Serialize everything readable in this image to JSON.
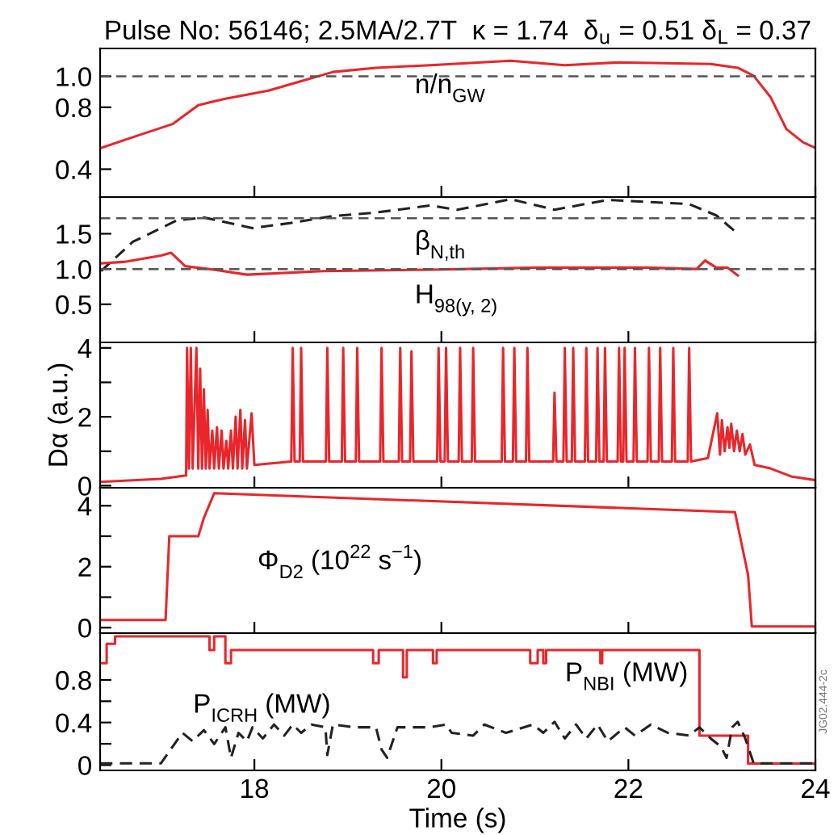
{
  "chart_data": [
    {
      "type": "line",
      "title": "Pulse No: 56146; 2.5MA/2.7T  κ = 1.74  δ$_{u}$ = 0.51 δ$_{L}$ = 0.37",
      "xlim": [
        16.35,
        24
      ],
      "xticks": [
        {
          "value": 18,
          "label": null
        },
        {
          "value": 20,
          "label": null
        },
        {
          "value": 22,
          "label": null
        },
        {
          "value": 24,
          "label": null
        }
      ],
      "ylim": [
        0.22,
        1.18
      ],
      "yticks": [
        0.4,
        0.8,
        {
          "value": 1.0,
          "label": "1.0"
        }
      ],
      "tick_labels": "y",
      "series": [
        {
          "color": "#e8262b",
          "line_style": "solid",
          "x": [
            16.35,
            16.7,
            17.13,
            17.4,
            17.69,
            18.15,
            18.5,
            18.84,
            19.3,
            19.88,
            20.74,
            21.32,
            21.9,
            22.88,
            23.17,
            23.34,
            23.52,
            23.69,
            23.87,
            24.0
          ],
          "values": [
            0.535,
            0.607,
            0.693,
            0.814,
            0.855,
            0.907,
            0.969,
            1.028,
            1.055,
            1.072,
            1.1,
            1.072,
            1.09,
            1.08,
            1.055,
            1.003,
            0.866,
            0.659,
            0.573,
            0.538
          ]
        }
      ],
      "ref_lines": [
        {
          "axis": "y",
          "value": 1.0,
          "color": "#555555",
          "line_style": "dashed"
        }
      ],
      "annotations": [
        "n/n$_{GW}$"
      ]
    },
    {
      "type": "line",
      "xlim": [
        16.35,
        24
      ],
      "xticks": [
        {
          "value": 18,
          "label": null
        },
        {
          "value": 20,
          "label": null
        },
        {
          "value": 22,
          "label": null
        },
        {
          "value": 24,
          "label": null
        }
      ],
      "ylim": [
        -0.04,
        2.02
      ],
      "yticks": [
        0.5,
        {
          "value": 1.0,
          "label": "1.0"
        },
        1.5
      ],
      "tick_labels": "y",
      "series": [
        {
          "color": "#222222",
          "line_style": "dashed",
          "x": [
            16.36,
            16.7,
            17.0,
            17.17,
            17.46,
            17.98,
            18.38,
            18.84,
            19.3,
            19.88,
            20.17,
            20.74,
            21.21,
            21.78,
            22.65,
            22.94,
            23.17
          ],
          "values": [
            0.97,
            1.385,
            1.58,
            1.69,
            1.73,
            1.58,
            1.65,
            1.75,
            1.8,
            1.9,
            1.84,
            1.99,
            1.84,
            1.98,
            1.92,
            1.76,
            1.5
          ]
        },
        {
          "color": "#e8262b",
          "line_style": "solid",
          "x": [
            16.36,
            16.6,
            17.0,
            17.11,
            17.26,
            17.57,
            17.92,
            18.73,
            19.88,
            21.03,
            22.19,
            22.73,
            22.82,
            22.94,
            23.06,
            23.17
          ],
          "values": [
            1.08,
            1.1,
            1.19,
            1.23,
            1.04,
            0.99,
            0.92,
            0.97,
            0.99,
            1.02,
            1.02,
            1.0,
            1.12,
            1.02,
            1.02,
            0.91
          ]
        }
      ],
      "ref_lines": [
        {
          "axis": "y",
          "value": 1.0,
          "color": "#555555",
          "line_style": "dashed"
        },
        {
          "axis": "y",
          "value": 1.72,
          "color": "#555555",
          "line_style": "dashed"
        }
      ],
      "annotations": [
        "β$_{N,th}$",
        "H$_{98(y, 2)}$"
      ]
    },
    {
      "type": "line",
      "ylabel": "Dα (a.u.)",
      "xlim": [
        16.35,
        24
      ],
      "xticks": [
        {
          "value": 18,
          "label": null
        },
        {
          "value": 20,
          "label": null
        },
        {
          "value": 22,
          "label": null
        },
        {
          "value": 24,
          "label": null
        }
      ],
      "ylim": [
        -0.06,
        4.16
      ],
      "yticks": [
        0,
        {
          "value": 1,
          "label": null
        },
        2,
        {
          "value": 3,
          "label": null
        },
        4
      ],
      "tick_labels": "y",
      "series": [
        {
          "color": "#e8262b",
          "line_style": "solid",
          "x": [
            16.35,
            17.0,
            17.27,
            17.28,
            17.3,
            17.32,
            17.34,
            17.38,
            17.4,
            17.42,
            17.44,
            17.46,
            17.48,
            17.5,
            17.52,
            17.55,
            17.57,
            17.6,
            17.62,
            17.65,
            17.67,
            17.7,
            17.72,
            17.75,
            17.77,
            17.8,
            17.82,
            17.85,
            17.87,
            17.9,
            17.92,
            17.97,
            18.0,
            18.395,
            18.41,
            18.43,
            18.485,
            18.5,
            18.52,
            18.765,
            18.78,
            18.8,
            18.935,
            18.95,
            18.97,
            19.085,
            19.1,
            19.12,
            19.345,
            19.36,
            19.38,
            19.545,
            19.56,
            19.58,
            19.665,
            19.68,
            19.7,
            19.955,
            19.97,
            19.99,
            20.035,
            20.05,
            20.07,
            20.185,
            20.2,
            20.22,
            20.325,
            20.34,
            20.36,
            20.645,
            20.66,
            20.68,
            20.765,
            20.78,
            20.8,
            20.905,
            20.92,
            20.94,
            21.195,
            21.21,
            21.23,
            21.305,
            21.32,
            21.34,
            21.395,
            21.41,
            21.43,
            21.535,
            21.55,
            21.57,
            21.655,
            21.67,
            21.69,
            21.735,
            21.75,
            21.77,
            21.885,
            21.9,
            21.92,
            21.945,
            21.96,
            21.98,
            22.055,
            22.07,
            22.09,
            22.205,
            22.22,
            22.24,
            22.325,
            22.34,
            22.36,
            22.465,
            22.48,
            22.5,
            22.635,
            22.65,
            22.67,
            22.85,
            22.95,
            22.98,
            23.0,
            23.03,
            23.06,
            23.08,
            23.1,
            23.13,
            23.16,
            23.19,
            23.22,
            23.25,
            23.3,
            23.35,
            23.52,
            23.74,
            24.0
          ],
          "values": [
            0.11,
            0.2,
            0.3,
            4,
            0.5,
            4,
            0.5,
            4,
            0.5,
            3.4,
            0.5,
            2.8,
            0.5,
            2.2,
            0.5,
            1.6,
            0.5,
            1.7,
            0.5,
            1.6,
            0.5,
            1.3,
            0.5,
            1.6,
            0.5,
            2.0,
            0.5,
            2.2,
            0.5,
            1.9,
            0.5,
            2.1,
            0.6,
            0.7,
            4,
            0.7,
            0.7,
            4,
            0.7,
            0.7,
            4,
            0.7,
            0.7,
            4,
            0.7,
            0.7,
            4,
            0.7,
            0.7,
            4,
            0.7,
            0.7,
            4,
            0.7,
            0.7,
            3.9,
            0.7,
            0.7,
            4,
            0.7,
            0.7,
            4,
            0.7,
            0.7,
            4,
            0.7,
            0.7,
            4,
            0.7,
            0.7,
            4,
            0.7,
            0.7,
            4,
            0.7,
            0.7,
            4,
            0.7,
            0.7,
            2.7,
            0.7,
            0.7,
            4,
            0.7,
            0.7,
            4,
            0.7,
            0.7,
            4,
            0.7,
            0.7,
            4,
            0.7,
            0.7,
            4,
            0.7,
            0.7,
            4,
            0.7,
            0.7,
            4,
            0.7,
            0.7,
            4,
            0.7,
            0.7,
            4,
            0.7,
            0.7,
            4,
            0.7,
            0.7,
            4,
            0.7,
            0.7,
            4,
            0.7,
            0.8,
            2.1,
            0.9,
            1.9,
            1.0,
            1.7,
            1.1,
            1.8,
            1.0,
            1.6,
            1.0,
            1.5,
            0.9,
            1.2,
            0.6,
            0.5,
            0.27,
            0.16
          ]
        }
      ]
    },
    {
      "type": "line",
      "xlim": [
        16.35,
        24
      ],
      "xticks": [
        {
          "value": 18,
          "label": null
        },
        {
          "value": 20,
          "label": null
        },
        {
          "value": 22,
          "label": null
        },
        {
          "value": 24,
          "label": null
        }
      ],
      "ylim": [
        -0.18,
        4.59
      ],
      "yticks": [
        0,
        {
          "value": 1,
          "label": null
        },
        2,
        {
          "value": 3,
          "label": null
        },
        4
      ],
      "tick_labels": "y",
      "series": [
        {
          "color": "#e8262b",
          "line_style": "solid",
          "x": [
            16.35,
            17.05,
            17.09,
            17.4,
            17.46,
            17.57,
            23.14,
            23.28,
            23.32,
            24.0
          ],
          "values": [
            0.25,
            0.25,
            3.0,
            3.0,
            3.6,
            4.41,
            3.79,
            1.73,
            0.04,
            0.04
          ]
        }
      ],
      "annotations": [
        "Φ$_{D2}$ (10$^{22}$ s$^{−1}$)"
      ]
    },
    {
      "type": "line",
      "xlabel": "Time (s)",
      "xlim": [
        16.35,
        24
      ],
      "xticks": [
        18,
        20,
        22,
        24
      ],
      "ylim": [
        -0.05,
        1.24
      ],
      "yticks": [
        0,
        {
          "value": 0.2,
          "label": null
        },
        0.4,
        {
          "value": 0.6,
          "label": null
        },
        0.8
      ],
      "series": [
        {
          "type": "step",
          "color": "#e8262b",
          "line_style": "solid",
          "x": [
            16.35,
            16.42,
            16.51,
            17.52,
            17.57,
            17.69,
            17.75,
            19.27,
            19.33,
            19.59,
            19.63,
            19.91,
            19.95,
            20.95,
            21.03,
            21.09,
            21.12,
            21.7,
            21.72,
            22.76,
            23.28,
            24.0
          ],
          "values": [
            0.957,
            1.14,
            1.21,
            1.08,
            1.21,
            0.957,
            1.08,
            0.957,
            1.08,
            0.825,
            1.08,
            0.957,
            1.08,
            0.957,
            1.08,
            0.957,
            1.08,
            0.957,
            1.08,
            0.276,
            0.015,
            0.015
          ]
        },
        {
          "color": "#222222",
          "line_style": "dashed",
          "x": [
            16.35,
            17.0,
            17.23,
            17.34,
            17.46,
            17.57,
            17.69,
            17.75,
            17.83,
            17.92,
            17.98,
            18.09,
            18.21,
            18.32,
            18.41,
            18.5,
            18.61,
            18.76,
            18.78,
            18.84,
            19.07,
            19.3,
            19.36,
            19.42,
            19.53,
            19.88,
            20.05,
            20.11,
            20.34,
            20.46,
            20.69,
            20.98,
            21.09,
            21.21,
            21.32,
            21.44,
            21.55,
            21.67,
            21.78,
            21.96,
            22.07,
            22.24,
            22.42,
            22.65,
            22.76,
            22.88,
            22.99,
            23.05,
            23.11,
            23.17,
            23.25,
            23.34,
            24.0
          ],
          "values": [
            0.016,
            0.016,
            0.303,
            0.224,
            0.329,
            0.198,
            0.355,
            0.068,
            0.303,
            0.224,
            0.355,
            0.25,
            0.381,
            0.277,
            0.381,
            0.303,
            0.381,
            0.355,
            0.094,
            0.381,
            0.355,
            0.355,
            0.146,
            0.068,
            0.355,
            0.355,
            0.381,
            0.303,
            0.277,
            0.381,
            0.303,
            0.381,
            0.303,
            0.407,
            0.25,
            0.381,
            0.25,
            0.381,
            0.224,
            0.355,
            0.277,
            0.381,
            0.303,
            0.277,
            0.355,
            0.25,
            0.172,
            0.068,
            0.355,
            0.407,
            0.25,
            0.016,
            0.016
          ]
        }
      ],
      "annotations": [
        "P$_{NBI}$ (MW)",
        "P$_{ICRH}$ (MW)",
        "JG02.444-2c"
      ]
    }
  ]
}
